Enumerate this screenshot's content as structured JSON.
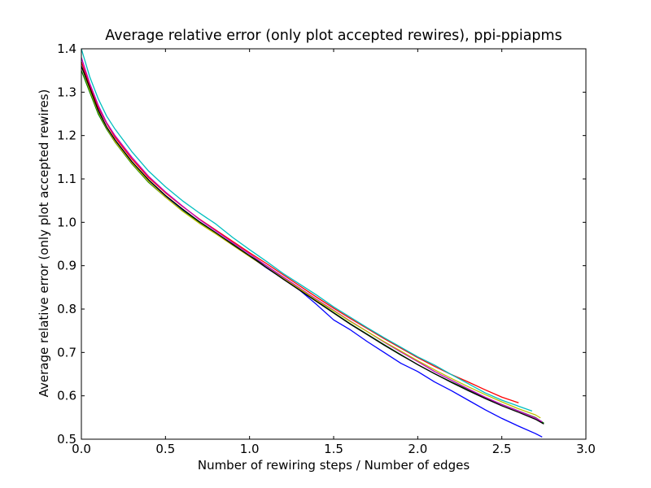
{
  "chart_data": {
    "type": "line",
    "title": "Average relative error (only plot accepted rewires), ppi-ppiapms",
    "xlabel": "Number of rewiring steps / Number of edges",
    "ylabel": "Average relative error (only plot accepted rewires)",
    "xlim": [
      0.0,
      3.0
    ],
    "ylim": [
      0.5,
      1.4
    ],
    "xticks": [
      "0.0",
      "0.5",
      "1.0",
      "1.5",
      "2.0",
      "2.5",
      "3.0"
    ],
    "yticks": [
      "0.5",
      "0.6",
      "0.7",
      "0.8",
      "0.9",
      "1.0",
      "1.1",
      "1.2",
      "1.3",
      "1.4"
    ],
    "grid": false,
    "series": [
      {
        "color": "#0000ff",
        "x": [
          0,
          0.05,
          0.1,
          0.15,
          0.2,
          0.3,
          0.4,
          0.5,
          0.6,
          0.7,
          0.8,
          0.9,
          1.0,
          1.1,
          1.2,
          1.3,
          1.4,
          1.5,
          1.6,
          1.7,
          1.8,
          1.9,
          2.0,
          2.1,
          2.2,
          2.3,
          2.4,
          2.5,
          2.6,
          2.7,
          2.74
        ],
        "y": [
          1.37,
          1.31,
          1.26,
          1.22,
          1.19,
          1.14,
          1.095,
          1.06,
          1.03,
          1.0,
          0.975,
          0.948,
          0.922,
          0.895,
          0.87,
          0.843,
          0.81,
          0.775,
          0.752,
          0.725,
          0.7,
          0.675,
          0.656,
          0.632,
          0.612,
          0.59,
          0.568,
          0.548,
          0.53,
          0.513,
          0.505
        ]
      },
      {
        "color": "#008000",
        "x": [
          0,
          0.05,
          0.1,
          0.15,
          0.2,
          0.3,
          0.4,
          0.5,
          0.6,
          0.7,
          0.8,
          0.9,
          1.0,
          1.1,
          1.2,
          1.3,
          1.4,
          1.5,
          1.6,
          1.7,
          1.8,
          1.9,
          2.0,
          2.1,
          2.2,
          2.3,
          2.4,
          2.5,
          2.6,
          2.7,
          2.75
        ],
        "y": [
          1.35,
          1.3,
          1.25,
          1.215,
          1.185,
          1.135,
          1.092,
          1.058,
          1.027,
          1.0,
          0.975,
          0.95,
          0.923,
          0.9,
          0.873,
          0.845,
          0.818,
          0.792,
          0.766,
          0.742,
          0.718,
          0.695,
          0.672,
          0.651,
          0.632,
          0.614,
          0.596,
          0.58,
          0.565,
          0.55,
          0.537
        ]
      },
      {
        "color": "#ff0000",
        "x": [
          0,
          0.05,
          0.1,
          0.15,
          0.2,
          0.3,
          0.4,
          0.5,
          0.6,
          0.7,
          0.8,
          0.9,
          1.0,
          1.1,
          1.2,
          1.3,
          1.4,
          1.5,
          1.6,
          1.7,
          1.8,
          1.9,
          2.0,
          2.1,
          2.2,
          2.3,
          2.4,
          2.5,
          2.6
        ],
        "y": [
          1.37,
          1.315,
          1.265,
          1.228,
          1.196,
          1.146,
          1.103,
          1.068,
          1.037,
          1.008,
          0.982,
          0.956,
          0.93,
          0.905,
          0.879,
          0.853,
          0.827,
          0.802,
          0.778,
          0.755,
          0.732,
          0.71,
          0.688,
          0.668,
          0.649,
          0.632,
          0.614,
          0.597,
          0.584
        ]
      },
      {
        "color": "#00bfbf",
        "x": [
          0,
          0.05,
          0.1,
          0.15,
          0.2,
          0.3,
          0.4,
          0.5,
          0.6,
          0.7,
          0.8,
          0.9,
          1.0,
          1.1,
          1.2,
          1.3,
          1.4,
          1.5,
          1.6,
          1.7,
          1.8,
          1.9,
          2.0,
          2.1,
          2.2,
          2.3,
          2.4,
          2.5,
          2.6,
          2.68
        ],
        "y": [
          1.4,
          1.335,
          1.285,
          1.245,
          1.215,
          1.163,
          1.118,
          1.082,
          1.05,
          1.022,
          0.996,
          0.965,
          0.937,
          0.91,
          0.882,
          0.857,
          0.832,
          0.805,
          0.781,
          0.757,
          0.734,
          0.712,
          0.69,
          0.671,
          0.649,
          0.628,
          0.607,
          0.59,
          0.576,
          0.565
        ]
      },
      {
        "color": "#bf00bf",
        "x": [
          0,
          0.05,
          0.1,
          0.15,
          0.2,
          0.3,
          0.4,
          0.5,
          0.6,
          0.7,
          0.8,
          0.9,
          1.0,
          1.1,
          1.2,
          1.3,
          1.4,
          1.5,
          1.6,
          1.7,
          1.8,
          1.9,
          2.0,
          2.1,
          2.2,
          2.3,
          2.4,
          2.5,
          2.6,
          2.7,
          2.74
        ],
        "y": [
          1.38,
          1.32,
          1.27,
          1.23,
          1.2,
          1.15,
          1.106,
          1.07,
          1.038,
          1.007,
          0.98,
          0.953,
          0.927,
          0.9,
          0.874,
          0.848,
          0.822,
          0.797,
          0.772,
          0.748,
          0.724,
          0.701,
          0.679,
          0.656,
          0.636,
          0.616,
          0.597,
          0.58,
          0.565,
          0.549,
          0.54
        ]
      },
      {
        "color": "#bfbf00",
        "x": [
          0,
          0.05,
          0.1,
          0.15,
          0.2,
          0.3,
          0.4,
          0.5,
          0.6,
          0.7,
          0.8,
          0.9,
          1.0,
          1.1,
          1.2,
          1.3,
          1.4,
          1.5,
          1.6,
          1.7,
          1.8,
          1.9,
          2.0,
          2.1,
          2.2,
          2.3,
          2.4,
          2.5,
          2.6,
          2.7,
          2.73
        ],
        "y": [
          1.36,
          1.305,
          1.255,
          1.218,
          1.186,
          1.137,
          1.094,
          1.058,
          1.026,
          0.998,
          0.973,
          0.947,
          0.921,
          0.896,
          0.871,
          0.846,
          0.82,
          0.796,
          0.771,
          0.748,
          0.725,
          0.703,
          0.681,
          0.66,
          0.64,
          0.621,
          0.603,
          0.586,
          0.57,
          0.556,
          0.549
        ]
      },
      {
        "color": "#000000",
        "x": [
          0,
          0.05,
          0.1,
          0.15,
          0.2,
          0.3,
          0.4,
          0.5,
          0.6,
          0.7,
          0.8,
          0.9,
          1.0,
          1.1,
          1.2,
          1.3,
          1.4,
          1.5,
          1.6,
          1.7,
          1.8,
          1.9,
          2.0,
          2.1,
          2.2,
          2.3,
          2.4,
          2.5,
          2.6,
          2.7,
          2.75
        ],
        "y": [
          1.36,
          1.31,
          1.258,
          1.22,
          1.19,
          1.14,
          1.098,
          1.062,
          1.031,
          1.002,
          0.976,
          0.949,
          0.923,
          0.896,
          0.869,
          0.843,
          0.817,
          0.791,
          0.765,
          0.741,
          0.717,
          0.694,
          0.672,
          0.651,
          0.631,
          0.612,
          0.594,
          0.577,
          0.562,
          0.546,
          0.535
        ]
      }
    ]
  }
}
